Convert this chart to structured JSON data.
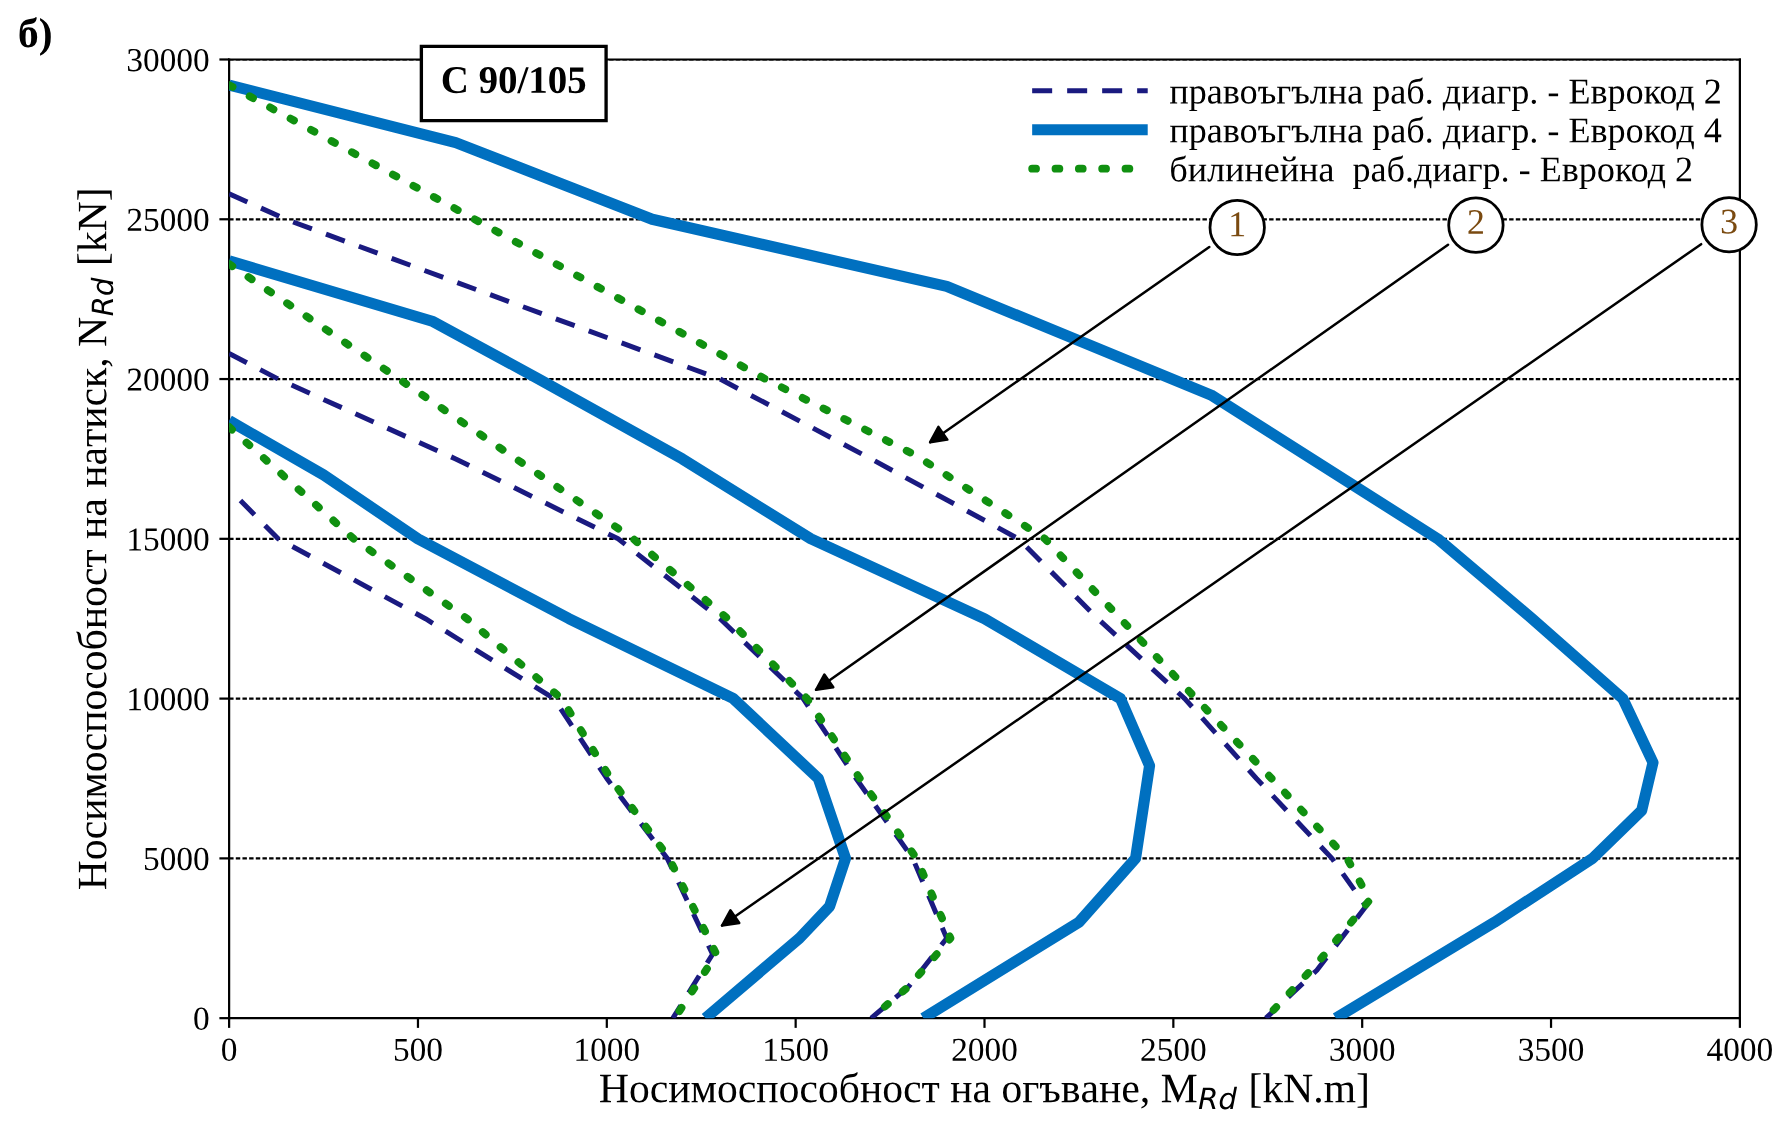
{
  "chart_data": {
    "type": "line",
    "xlabel": "Носимоспособност на огъване, M$_{Rd}$ [kN.m]",
    "ylabel": "Носимоспособност на натиск, N$_{Rd}$ [kN]",
    "xlim": [
      0,
      4000
    ],
    "xticks": [
      0,
      500,
      1000,
      1500,
      2000,
      2500,
      3000,
      3500,
      4000
    ],
    "ylim": [
      0,
      30000
    ],
    "yticks": [
      0,
      5000,
      10000,
      15000,
      20000,
      25000,
      30000
    ],
    "grid": "y",
    "legend": "top right",
    "marker": "none",
    "annotations": [
      "б)",
      "C 90/105",
      {
        "text": "1",
        "x": 1838,
        "y": 17875
      },
      {
        "text": "2",
        "x": 1536,
        "y": 10125
      },
      {
        "text": "3",
        "x": 1287,
        "y": 2750
      }
    ],
    "series": [
      {
        "name": "правоъгълна раб. диагр. - Еврокод 2",
        "color": "#1a1a80",
        "line_style": "dashed",
        "x": [
          0,
          150,
          700,
          1300,
          1700,
          2090,
          2300,
          2530,
          2720,
          2920,
          3010,
          2880,
          2745
        ],
        "values": [
          25800,
          25000,
          22600,
          20000,
          17500,
          15000,
          12500,
          10000,
          7500,
          5000,
          3500,
          1500,
          0
        ]
      },
      {
        "name": "правоъгълна раб. диагр. - Еврокод 4",
        "color": "#0070c0",
        "line_style": "solid",
        "x": [
          0,
          600,
          1120,
          1900,
          2600,
          3200,
          3450,
          3690,
          3770,
          3740,
          3610,
          3350,
          2930
        ],
        "values": [
          29200,
          27400,
          25000,
          22900,
          19500,
          15000,
          12500,
          10000,
          8000,
          6500,
          5000,
          3000,
          0
        ]
      },
      {
        "name": "билинейна  раб.диагр. - Еврокод 2",
        "color": "#109010",
        "line_style": "dotted",
        "x": [
          0,
          650,
          1420,
          1820,
          2160,
          2360,
          2560,
          2960,
          3020,
          2880,
          2745
        ],
        "values": [
          29200,
          25000,
          20000,
          17600,
          15000,
          12500,
          10000,
          5000,
          3700,
          1700,
          0
        ]
      },
      {
        "color": "#1a1a80",
        "line_style": "dashed",
        "x": [
          0,
          130,
          600,
          1030,
          1300,
          1520,
          1660,
          1810,
          1900,
          1800,
          1700
        ],
        "values": [
          20800,
          20000,
          17500,
          15000,
          12500,
          10000,
          7500,
          5000,
          2500,
          1000,
          0
        ]
      },
      {
        "color": "#0070c0",
        "line_style": "solid",
        "x": [
          0,
          540,
          820,
          1200,
          1540,
          2000,
          2360,
          2437,
          2400,
          2250,
          1838
        ],
        "values": [
          23700,
          21800,
          20000,
          17500,
          15000,
          12500,
          10000,
          7900,
          5000,
          3000,
          0
        ]
      },
      {
        "color": "#109010",
        "line_style": "dotted",
        "x": [
          0,
          450,
          1070,
          1320,
          1530,
          1670,
          1820,
          1910,
          1800,
          1700
        ],
        "values": [
          23600,
          20000,
          15000,
          12500,
          10000,
          7500,
          5000,
          2500,
          1000,
          0
        ]
      },
      {
        "color": "#1a1a80",
        "line_style": "dashed",
        "x": [
          30,
          130,
          520,
          860,
          1000,
          1160,
          1280,
          1175
        ],
        "values": [
          16200,
          15000,
          12500,
          10000,
          7500,
          5000,
          2000,
          0
        ]
      },
      {
        "color": "#0070c0",
        "line_style": "solid",
        "x": [
          0,
          250,
          500,
          900,
          1335,
          1560,
          1632,
          1590,
          1510,
          1261
        ],
        "values": [
          18700,
          17000,
          15000,
          12500,
          10000,
          7500,
          5000,
          3500,
          2500,
          0
        ]
      },
      {
        "color": "#109010",
        "line_style": "dotted",
        "x": [
          0,
          330,
          630,
          880,
          1010,
          1165,
          1290,
          1180
        ],
        "values": [
          18500,
          15000,
          12500,
          10000,
          7500,
          5000,
          2000,
          0
        ]
      }
    ]
  }
}
